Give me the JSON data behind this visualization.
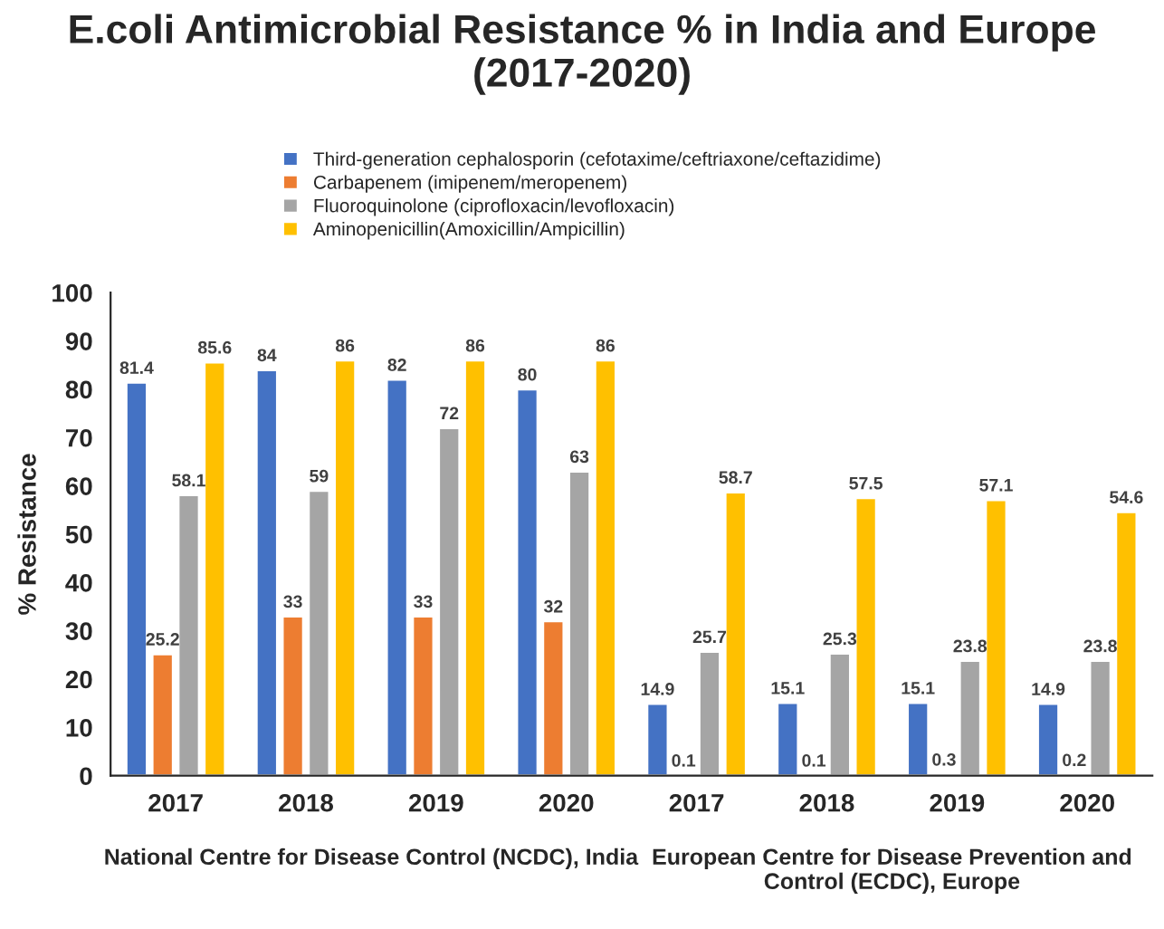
{
  "chart_data": {
    "type": "bar",
    "title": "E.coli Antimicrobial Resistance % in India and Europe\n(2017-2020)",
    "ylabel": "% Resistance",
    "categories": [
      "2017",
      "2018",
      "2019",
      "2020",
      "2017",
      "2018",
      "2019",
      "2020"
    ],
    "series": [
      {
        "name": "Third-generation cephalosporin (cefotaxime/ceftriaxone/ceftazidime)",
        "color": "#4472c4",
        "values": [
          81.4,
          84,
          82,
          80,
          14.9,
          15.1,
          15.1,
          14.9
        ]
      },
      {
        "name": "Carbapenem (imipenem/meropenem)",
        "color": "#ed7d31",
        "values": [
          25.2,
          33,
          33,
          32,
          0.1,
          0.1,
          0.3,
          0.2
        ]
      },
      {
        "name": "Fluoroquinolone (ciprofloxacin/levofloxacin)",
        "color": "#a5a5a5",
        "values": [
          58.1,
          59,
          72,
          63,
          25.7,
          25.3,
          23.8,
          23.8
        ]
      },
      {
        "name": "Aminopenicillin(Amoxicillin/Ampicillin)",
        "color": "#ffc000",
        "values": [
          85.6,
          86,
          86,
          86,
          58.7,
          57.5,
          57.1,
          54.6
        ]
      }
    ],
    "annotations": [
      "National Centre for Disease Control (NCDC), India",
      "European Centre for Disease Prevention and Control (ECDC), Europe"
    ],
    "ylim": [
      0,
      100
    ],
    "yticks": [
      0,
      10,
      20,
      30,
      40,
      50,
      60,
      70,
      80,
      90,
      100
    ],
    "data_labels": true,
    "grid": false,
    "legend": "top"
  }
}
